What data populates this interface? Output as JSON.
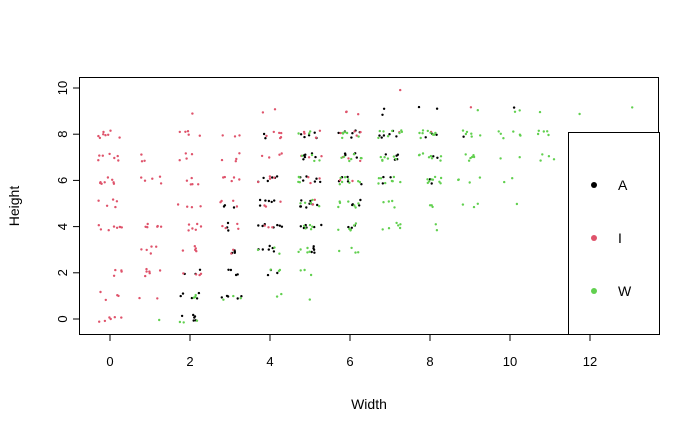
{
  "chart_data": {
    "type": "scatter",
    "title": "",
    "xlabel": "Width",
    "ylabel": "Height",
    "xlim": [
      -0.8,
      13.7
    ],
    "ylim": [
      -0.7,
      10.6
    ],
    "xticks": [
      "0",
      "2",
      "4",
      "6",
      "8",
      "10",
      "12"
    ],
    "yticks": [
      "0",
      "2",
      "4",
      "6",
      "8",
      "10"
    ],
    "legend_position": "right",
    "series": [
      {
        "name": "A",
        "color": "#000000",
        "points": [
          [
            2,
            0,
            6
          ],
          [
            2,
            1,
            5
          ],
          [
            2,
            2,
            3
          ],
          [
            3,
            1,
            5
          ],
          [
            3,
            2,
            4
          ],
          [
            3,
            3,
            4
          ],
          [
            3,
            4,
            3
          ],
          [
            3,
            5,
            3
          ],
          [
            4,
            2,
            3
          ],
          [
            4,
            3,
            6
          ],
          [
            4,
            4,
            7
          ],
          [
            4,
            5,
            6
          ],
          [
            4,
            6,
            6
          ],
          [
            4,
            8,
            2
          ],
          [
            5,
            3,
            5
          ],
          [
            5,
            4,
            6
          ],
          [
            5,
            5,
            8
          ],
          [
            5,
            6,
            6
          ],
          [
            5,
            7,
            6
          ],
          [
            5,
            8,
            5
          ],
          [
            6,
            4,
            3
          ],
          [
            6,
            5,
            4
          ],
          [
            6,
            6,
            5
          ],
          [
            6,
            7,
            5
          ],
          [
            6,
            8,
            6
          ],
          [
            7,
            6,
            3
          ],
          [
            7,
            7,
            5
          ],
          [
            7,
            8,
            6
          ],
          [
            7,
            9,
            2
          ],
          [
            8,
            6,
            2
          ],
          [
            8,
            7,
            2
          ],
          [
            8,
            8,
            3
          ],
          [
            8,
            9,
            2
          ],
          [
            9,
            8,
            1
          ],
          [
            10,
            9,
            1
          ],
          [
            12,
            8,
            1
          ]
        ]
      },
      {
        "name": "I",
        "color": "#DF536B",
        "points": [
          [
            0,
            0,
            6
          ],
          [
            0,
            1,
            4
          ],
          [
            0,
            2,
            4
          ],
          [
            0,
            4,
            8
          ],
          [
            0,
            5,
            5
          ],
          [
            0,
            6,
            8
          ],
          [
            0,
            7,
            7
          ],
          [
            0,
            8,
            8
          ],
          [
            1,
            1,
            2
          ],
          [
            1,
            2,
            6
          ],
          [
            1,
            3,
            5
          ],
          [
            1,
            4,
            6
          ],
          [
            1,
            6,
            5
          ],
          [
            1,
            7,
            3
          ],
          [
            2,
            2,
            4
          ],
          [
            2,
            3,
            5
          ],
          [
            2,
            4,
            6
          ],
          [
            2,
            5,
            4
          ],
          [
            2,
            6,
            5
          ],
          [
            2,
            7,
            4
          ],
          [
            2,
            8,
            5
          ],
          [
            2,
            9,
            1
          ],
          [
            3,
            3,
            2
          ],
          [
            3,
            4,
            4
          ],
          [
            3,
            5,
            4
          ],
          [
            3,
            6,
            5
          ],
          [
            3,
            7,
            4
          ],
          [
            3,
            8,
            3
          ],
          [
            4,
            4,
            3
          ],
          [
            4,
            5,
            3
          ],
          [
            4,
            6,
            4
          ],
          [
            4,
            7,
            4
          ],
          [
            4,
            8,
            6
          ],
          [
            4,
            9,
            2
          ],
          [
            5,
            5,
            2
          ],
          [
            5,
            6,
            3
          ],
          [
            5,
            7,
            3
          ],
          [
            5,
            8,
            4
          ],
          [
            6,
            6,
            2
          ],
          [
            6,
            7,
            3
          ],
          [
            6,
            8,
            4
          ],
          [
            6,
            9,
            3
          ],
          [
            7,
            10,
            1
          ],
          [
            7,
            8,
            1
          ],
          [
            8,
            8,
            1
          ],
          [
            9,
            9,
            1
          ]
        ]
      },
      {
        "name": "W",
        "color": "#61D04F",
        "points": [
          [
            1,
            0,
            1
          ],
          [
            2,
            0,
            3
          ],
          [
            2,
            1,
            3
          ],
          [
            3,
            1,
            3
          ],
          [
            4,
            1,
            2
          ],
          [
            4,
            2,
            3
          ],
          [
            4,
            3,
            3
          ],
          [
            5,
            1,
            1
          ],
          [
            5,
            2,
            3
          ],
          [
            5,
            3,
            5
          ],
          [
            5,
            4,
            5
          ],
          [
            5,
            5,
            5
          ],
          [
            5,
            6,
            4
          ],
          [
            5,
            7,
            4
          ],
          [
            5,
            8,
            3
          ],
          [
            6,
            3,
            4
          ],
          [
            6,
            4,
            6
          ],
          [
            6,
            5,
            7
          ],
          [
            6,
            6,
            8
          ],
          [
            6,
            7,
            7
          ],
          [
            6,
            8,
            6
          ],
          [
            7,
            4,
            6
          ],
          [
            7,
            5,
            4
          ],
          [
            7,
            6,
            8
          ],
          [
            7,
            7,
            7
          ],
          [
            7,
            8,
            8
          ],
          [
            8,
            4,
            2
          ],
          [
            8,
            5,
            3
          ],
          [
            8,
            6,
            9
          ],
          [
            8,
            7,
            8
          ],
          [
            8,
            8,
            10
          ],
          [
            9,
            5,
            3
          ],
          [
            9,
            6,
            4
          ],
          [
            9,
            7,
            6
          ],
          [
            9,
            8,
            6
          ],
          [
            9,
            9,
            1
          ],
          [
            10,
            5,
            1
          ],
          [
            10,
            6,
            2
          ],
          [
            10,
            7,
            2
          ],
          [
            10,
            8,
            6
          ],
          [
            10,
            9,
            2
          ],
          [
            11,
            7,
            4
          ],
          [
            11,
            8,
            5
          ],
          [
            11,
            9,
            1
          ],
          [
            12,
            9,
            1
          ],
          [
            13,
            9,
            1
          ]
        ]
      }
    ]
  }
}
